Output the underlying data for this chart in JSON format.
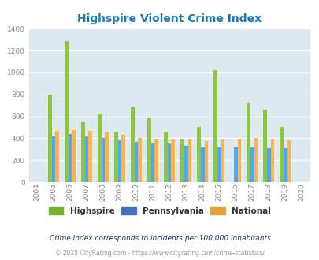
{
  "title": "Highspire Violent Crime Index",
  "years": [
    2004,
    2005,
    2006,
    2007,
    2008,
    2009,
    2010,
    2011,
    2012,
    2013,
    2014,
    2015,
    2016,
    2017,
    2018,
    2019,
    2020
  ],
  "highspire": [
    0,
    800,
    1290,
    545,
    615,
    460,
    685,
    585,
    460,
    385,
    505,
    1020,
    0,
    720,
    665,
    505,
    0
  ],
  "pennsylvania": [
    0,
    420,
    440,
    415,
    405,
    380,
    370,
    350,
    355,
    330,
    315,
    315,
    315,
    315,
    310,
    310,
    0
  ],
  "national": [
    0,
    470,
    475,
    470,
    450,
    435,
    405,
    390,
    390,
    390,
    375,
    385,
    395,
    400,
    395,
    380,
    0
  ],
  "highspire_color": "#8dc63f",
  "pennsylvania_color": "#4da6ff",
  "national_color": "#ffb347",
  "bg_color": "#dce9f0",
  "title_color": "#1a7abf",
  "ylim": [
    0,
    1400
  ],
  "yticks": [
    0,
    200,
    400,
    600,
    800,
    1000,
    1200,
    1400
  ],
  "footnote1": "Crime Index corresponds to incidents per 100,000 inhabitants",
  "footnote2": "© 2025 CityRating.com - https://www.cityrating.com/crime-statistics/",
  "legend_labels": [
    "Highspire",
    "Pennsylvania",
    "National"
  ],
  "legend_colors": [
    "#73b52a",
    "#4472c4",
    "#e8a030"
  ]
}
